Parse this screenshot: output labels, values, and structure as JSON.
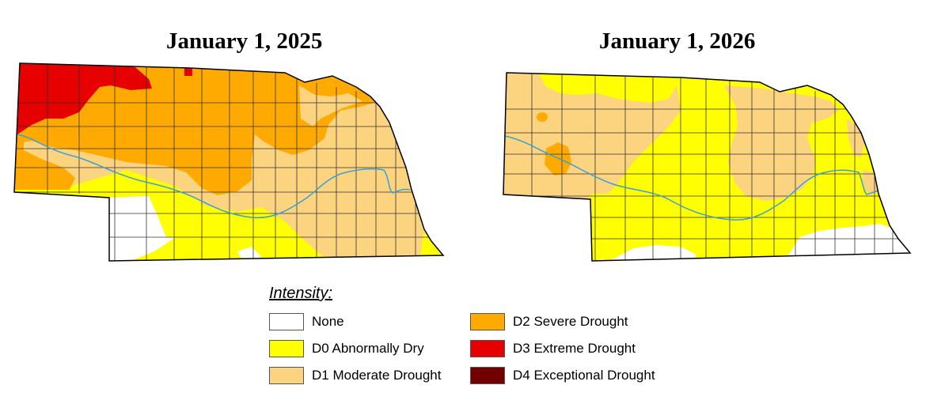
{
  "maps": [
    {
      "title": "January 1, 2025"
    },
    {
      "title": "January 1, 2026"
    }
  ],
  "legend": {
    "heading": "Intensity:",
    "items": [
      {
        "label": "None",
        "color": "#ffffff"
      },
      {
        "label": "D0 Abnormally Dry",
        "color": "#ffff00"
      },
      {
        "label": "D1 Moderate Drought",
        "color": "#fcd37f"
      },
      {
        "label": "D2 Severe Drought",
        "color": "#ffaa00"
      },
      {
        "label": "D3 Extreme Drought",
        "color": "#e60000"
      },
      {
        "label": "D4 Exceptional Drought",
        "color": "#730000"
      }
    ]
  },
  "colors": {
    "river": "#3aa0d8",
    "border": "#000000",
    "county_line": "#333333"
  }
}
